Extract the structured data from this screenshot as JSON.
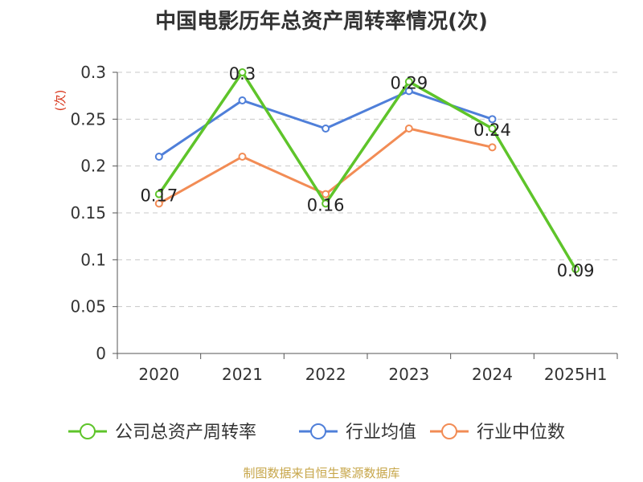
{
  "source_text": "制图数据来自恒生聚源数据库",
  "chart_data": {
    "type": "line",
    "title": "中国电影历年总资产周转率情况(次)",
    "ylabel": "(次)",
    "xlabel": "",
    "categories": [
      "2020",
      "2021",
      "2022",
      "2023",
      "2024",
      "2025H1"
    ],
    "ylim": [
      0,
      0.3
    ],
    "yticks": [
      0,
      0.05,
      0.1,
      0.15,
      0.2,
      0.25,
      0.3
    ],
    "ytick_labels": [
      "0",
      "0.05",
      "0.1",
      "0.15",
      "0.2",
      "0.25",
      "0.3"
    ],
    "grid": true,
    "legend_position": "bottom",
    "series": [
      {
        "name": "公司总资产周转率",
        "color": "#5ec42a",
        "values": [
          0.17,
          0.3,
          0.16,
          0.29,
          0.24,
          0.09
        ],
        "data_labels": [
          "0.17",
          "0.3",
          "0.16",
          "0.29",
          "0.24",
          "0.09"
        ]
      },
      {
        "name": "行业均值",
        "color": "#4f7fd9",
        "values": [
          0.21,
          0.27,
          0.24,
          0.28,
          0.25,
          null
        ]
      },
      {
        "name": "行业中位数",
        "color": "#f28c55",
        "values": [
          0.16,
          0.21,
          0.17,
          0.24,
          0.22,
          null
        ]
      }
    ]
  }
}
